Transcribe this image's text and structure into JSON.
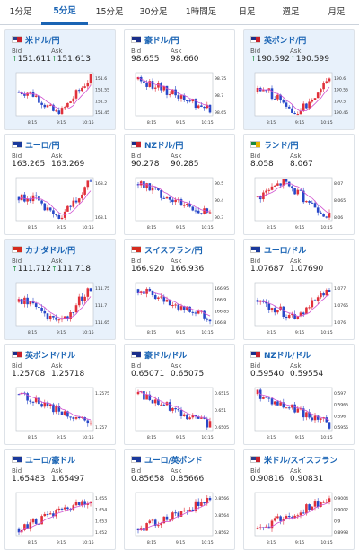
{
  "tabs": [
    {
      "label": "1分足",
      "active": false
    },
    {
      "label": "5分足",
      "active": true
    },
    {
      "label": "15分足",
      "active": false
    },
    {
      "label": "30分足",
      "active": false
    },
    {
      "label": "1時間足",
      "active": false
    },
    {
      "label": "日足",
      "active": false
    },
    {
      "label": "週足",
      "active": false
    },
    {
      "label": "月足",
      "active": false
    }
  ],
  "bid_label": "Bid",
  "ask_label": "Ask",
  "up_arrow": "↑",
  "x_ticks": [
    "8:15",
    "9:15",
    "10:15"
  ],
  "colors": {
    "up": "#e0303a",
    "down": "#2848c8",
    "ma": "#d050d0",
    "accent": "#1a64b4"
  },
  "cards": [
    {
      "pair": "米ドル/円",
      "flag": "us",
      "bid": "151.611",
      "ask": "151.613",
      "up": true,
      "highlight": true,
      "y_ticks": [
        "151.6",
        "151.55",
        "151.5",
        "151.45"
      ],
      "trend": "vdip"
    },
    {
      "pair": "豪ドル/円",
      "flag": "au",
      "bid": "98.655",
      "ask": "98.660",
      "up": false,
      "highlight": false,
      "y_ticks": [
        "98.75",
        "98.7",
        "98.65"
      ],
      "trend": "down"
    },
    {
      "pair": "英ポンド/円",
      "flag": "gb",
      "bid": "190.592",
      "ask": "190.599",
      "up": true,
      "highlight": true,
      "y_ticks": [
        "190.6",
        "190.55",
        "190.5",
        "190.45"
      ],
      "trend": "vdip"
    },
    {
      "pair": "ユーロ/円",
      "flag": "eu",
      "bid": "163.265",
      "ask": "163.269",
      "up": false,
      "highlight": false,
      "y_ticks": [
        "163.2",
        "163.1"
      ],
      "trend": "vdip"
    },
    {
      "pair": "NZドル/円",
      "flag": "nz",
      "bid": "90.278",
      "ask": "90.285",
      "up": false,
      "highlight": false,
      "y_ticks": [
        "90.5",
        "90.4",
        "90.3"
      ],
      "trend": "down"
    },
    {
      "pair": "ランド/円",
      "flag": "za",
      "bid": "8.058",
      "ask": "8.067",
      "up": false,
      "highlight": false,
      "y_ticks": [
        "8.07",
        "8.065",
        "8.06"
      ],
      "trend": "humpdown"
    },
    {
      "pair": "カナダドル/円",
      "flag": "ca",
      "bid": "111.712",
      "ask": "111.718",
      "up": true,
      "highlight": true,
      "y_ticks": [
        "111.75",
        "111.7",
        "111.65"
      ],
      "trend": "vdip"
    },
    {
      "pair": "スイスフラン/円",
      "flag": "ch",
      "bid": "166.920",
      "ask": "166.936",
      "up": false,
      "highlight": false,
      "y_ticks": [
        "166.95",
        "166.9",
        "166.85",
        "166.8"
      ],
      "trend": "down"
    },
    {
      "pair": "ユーロ/ドル",
      "flag": "eu",
      "bid": "1.07687",
      "ask": "1.07690",
      "up": false,
      "highlight": false,
      "y_ticks": [
        "1.077",
        "1.0765",
        "1.076"
      ],
      "trend": "dipup"
    },
    {
      "pair": "英ポンド/ドル",
      "flag": "gb",
      "bid": "1.25708",
      "ask": "1.25718",
      "up": false,
      "highlight": false,
      "y_ticks": [
        "1.2575",
        "1.257"
      ],
      "trend": "down"
    },
    {
      "pair": "豪ドル/ドル",
      "flag": "au",
      "bid": "0.65071",
      "ask": "0.65075",
      "up": false,
      "highlight": false,
      "y_ticks": [
        "0.6515",
        "0.651",
        "0.6505"
      ],
      "trend": "down"
    },
    {
      "pair": "NZドル/ドル",
      "flag": "nz",
      "bid": "0.59540",
      "ask": "0.59554",
      "up": false,
      "highlight": false,
      "y_ticks": [
        "0.597",
        "0.5965",
        "0.596",
        "0.5955"
      ],
      "trend": "down"
    },
    {
      "pair": "ユーロ/豪ドル",
      "flag": "eu",
      "bid": "1.65483",
      "ask": "1.65497",
      "up": false,
      "highlight": false,
      "y_ticks": [
        "1.655",
        "1.654",
        "1.653",
        "1.652"
      ],
      "trend": "up"
    },
    {
      "pair": "ユーロ/英ポンド",
      "flag": "eu",
      "bid": "0.85658",
      "ask": "0.85666",
      "up": false,
      "highlight": false,
      "y_ticks": [
        "0.8566",
        "0.8564",
        "0.8562"
      ],
      "trend": "up"
    },
    {
      "pair": "米ドル/スイスフラン",
      "flag": "us",
      "bid": "0.90816",
      "ask": "0.90831",
      "up": false,
      "highlight": false,
      "y_ticks": [
        "0.9004",
        "0.9002",
        "0.9",
        "0.8998"
      ],
      "trend": "up"
    }
  ]
}
